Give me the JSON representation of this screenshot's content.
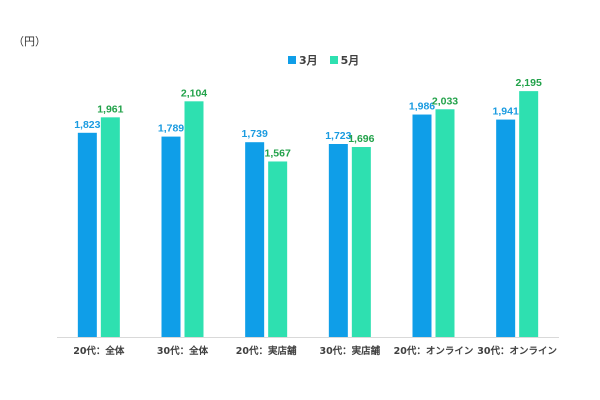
{
  "chart_data": {
    "type": "bar",
    "unit_label": "（円）",
    "categories": [
      "20代：全体",
      "30代：全体",
      "20代：実店舗",
      "30代：実店舗",
      "20代：オンライン",
      "30代：オンライン"
    ],
    "series": [
      {
        "name": "3月",
        "values": [
          1823,
          1789,
          1739,
          1723,
          1986,
          1941
        ],
        "labels": [
          "1,823",
          "1,789",
          "1,739",
          "1,723",
          "1,986",
          "1,941"
        ],
        "color": "#0f9ee8",
        "label_color": "#1a9be0"
      },
      {
        "name": "5月",
        "values": [
          1961,
          2104,
          1567,
          1696,
          2033,
          2195
        ],
        "labels": [
          "1,961",
          "2,104",
          "1,567",
          "1,696",
          "2,033",
          "2,195"
        ],
        "color": "#2ee0b0",
        "label_color": "#22a24a"
      }
    ],
    "ylim": [
      0,
      2455
    ],
    "grid": false,
    "legend": "top-center",
    "axis_color": "#d9d9d9"
  }
}
